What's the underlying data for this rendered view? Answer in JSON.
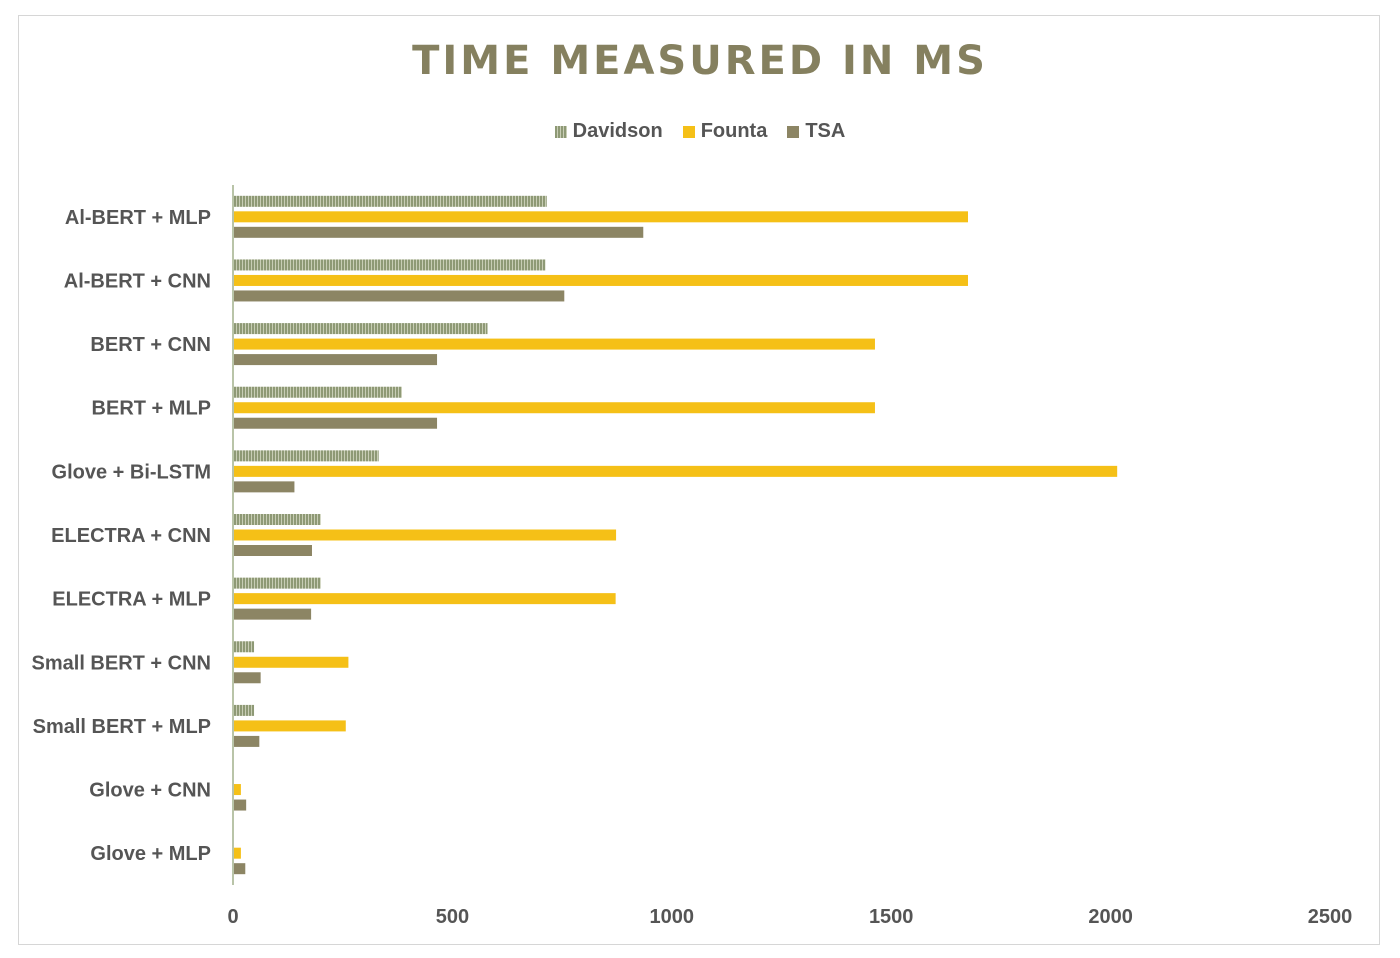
{
  "chart_data": {
    "type": "bar",
    "orientation": "horizontal",
    "title": "TIME MEASURED IN MS",
    "xlabel": "",
    "ylabel": "",
    "xlim": [
      0,
      2500
    ],
    "x_ticks": [
      "0",
      "500",
      "1000",
      "1500",
      "2000",
      "2500"
    ],
    "grid": false,
    "legend_position": "top",
    "categories": [
      "Al-BERT + MLP",
      "Al-BERT + CNN",
      "BERT + CNN",
      "BERT + MLP",
      "Glove + Bi-LSTM",
      "ELECTRA + CNN",
      "ELECTRA + MLP",
      "Small BERT + CNN",
      "Small BERT + MLP",
      "Glove + CNN",
      "Glove + MLP"
    ],
    "series": [
      {
        "name": "Davidson",
        "color": "#8e9975",
        "pattern": "vertical-stripes",
        "values": [
          715,
          712,
          580,
          385,
          332,
          200,
          200,
          48,
          48,
          2,
          2
        ]
      },
      {
        "name": "Founta",
        "color": "#f5c017",
        "pattern": "solid",
        "values": [
          1675,
          1675,
          1463,
          1463,
          2015,
          873,
          872,
          263,
          257,
          18,
          18
        ]
      },
      {
        "name": "TSA",
        "color": "#8c8564",
        "pattern": "solid",
        "values": [
          935,
          755,
          465,
          465,
          140,
          180,
          178,
          63,
          60,
          30,
          28
        ]
      }
    ]
  }
}
